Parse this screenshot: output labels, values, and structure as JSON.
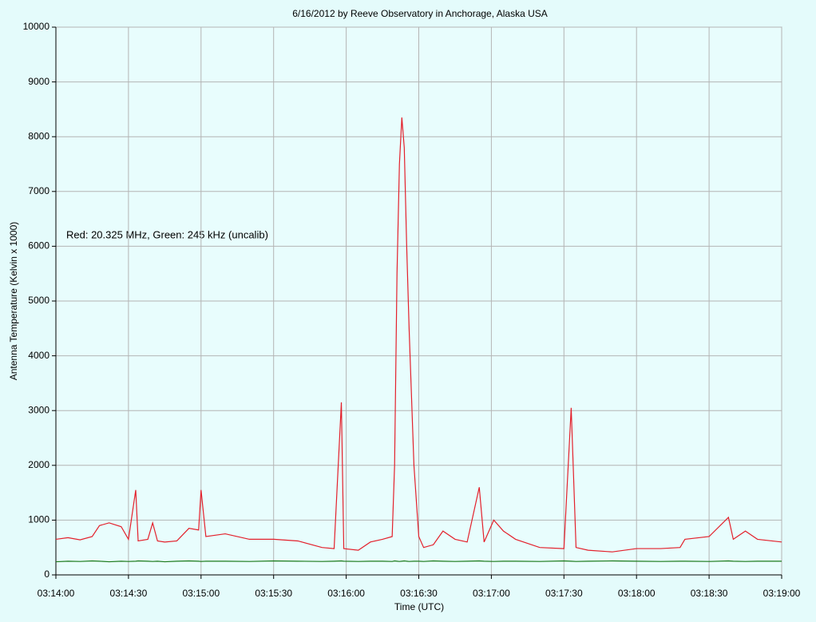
{
  "chart_data": {
    "type": "line",
    "title": "6/16/2012  by  Reeve Observatory  in  Anchorage, Alaska  USA",
    "xlabel": "Time (UTC)",
    "ylabel": "Antenna Temperature (Kelvin x 1000)",
    "annotation": "Red: 20.325 MHz, Green: 245 kHz (uncalib)",
    "x": [
      "03:14:00",
      "03:14:05",
      "03:14:10",
      "03:14:15",
      "03:14:18",
      "03:14:22",
      "03:14:27",
      "03:14:30",
      "03:14:33",
      "03:14:34",
      "03:14:38",
      "03:14:40",
      "03:14:42",
      "03:14:45",
      "03:14:50",
      "03:14:55",
      "03:14:59",
      "03:15:00",
      "03:15:02",
      "03:15:10",
      "03:15:20",
      "03:15:30",
      "03:15:40",
      "03:15:50",
      "03:15:55",
      "03:15:58",
      "03:15:59",
      "03:16:05",
      "03:16:10",
      "03:16:15",
      "03:16:19",
      "03:16:20",
      "03:16:21",
      "03:16:22",
      "03:16:23",
      "03:16:24",
      "03:16:25",
      "03:16:26",
      "03:16:28",
      "03:16:30",
      "03:16:32",
      "03:16:36",
      "03:16:40",
      "03:16:45",
      "03:16:50",
      "03:16:55",
      "03:16:57",
      "03:17:01",
      "03:17:05",
      "03:17:10",
      "03:17:20",
      "03:17:30",
      "03:17:33",
      "03:17:35",
      "03:17:40",
      "03:17:50",
      "03:18:00",
      "03:18:10",
      "03:18:18",
      "03:18:20",
      "03:18:30",
      "03:18:38",
      "03:18:40",
      "03:18:45",
      "03:18:50",
      "03:19:00"
    ],
    "series": [
      {
        "name": "Red",
        "color": "#e3202b",
        "values": [
          650,
          680,
          640,
          700,
          900,
          950,
          880,
          650,
          1550,
          620,
          650,
          950,
          620,
          600,
          620,
          850,
          820,
          1550,
          700,
          750,
          650,
          650,
          620,
          500,
          480,
          3150,
          480,
          450,
          600,
          650,
          700,
          2000,
          5500,
          7500,
          8350,
          7800,
          6000,
          4500,
          2000,
          700,
          500,
          550,
          800,
          650,
          600,
          1600,
          600,
          1000,
          800,
          650,
          500,
          480,
          3050,
          500,
          450,
          420,
          480,
          480,
          500,
          650,
          700,
          1050,
          650,
          800,
          650,
          600
        ]
      },
      {
        "name": "Green",
        "color": "#1b7a1b",
        "values": [
          240,
          250,
          245,
          255,
          250,
          240,
          250,
          245,
          250,
          255,
          250,
          245,
          250,
          240,
          250,
          255,
          250,
          245,
          250,
          250,
          245,
          255,
          250,
          245,
          250,
          255,
          250,
          245,
          250,
          250,
          245,
          255,
          250,
          245,
          250,
          255,
          250,
          245,
          250,
          250,
          245,
          255,
          250,
          245,
          250,
          255,
          250,
          245,
          250,
          250,
          245,
          255,
          250,
          245,
          250,
          255,
          250,
          245,
          250,
          250,
          245,
          255,
          250,
          245,
          250,
          250
        ]
      }
    ],
    "xlim": [
      "03:14:00",
      "03:19:00"
    ],
    "xticks": [
      "03:14:00",
      "03:14:30",
      "03:15:00",
      "03:15:30",
      "03:16:00",
      "03:16:30",
      "03:17:00",
      "03:17:30",
      "03:18:00",
      "03:18:30",
      "03:19:00"
    ],
    "ylim": [
      0,
      10000
    ],
    "yticks": [
      0,
      1000,
      2000,
      3000,
      4000,
      5000,
      6000,
      7000,
      8000,
      9000,
      10000
    ],
    "grid": true
  }
}
